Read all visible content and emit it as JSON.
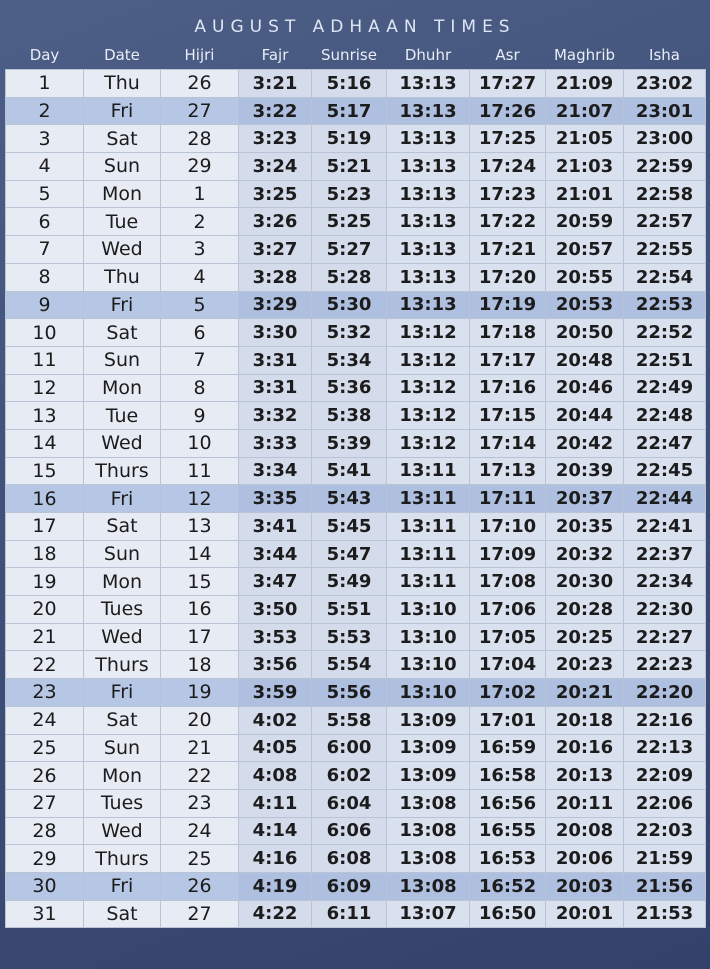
{
  "title": "AUGUST ADHAAN TIMES",
  "columns": [
    "Day",
    "Date",
    "Hijri",
    "Fajr",
    "Sunrise",
    "Dhuhr",
    "Asr",
    "Maghrib",
    "Isha"
  ],
  "rows": [
    [
      "1",
      "Thu",
      "26",
      "3:21",
      "5:16",
      "13:13",
      "17:27",
      "21:09",
      "23:02"
    ],
    [
      "2",
      "Fri",
      "27",
      "3:22",
      "5:17",
      "13:13",
      "17:26",
      "21:07",
      "23:01"
    ],
    [
      "3",
      "Sat",
      "28",
      "3:23",
      "5:19",
      "13:13",
      "17:25",
      "21:05",
      "23:00"
    ],
    [
      "4",
      "Sun",
      "29",
      "3:24",
      "5:21",
      "13:13",
      "17:24",
      "21:03",
      "22:59"
    ],
    [
      "5",
      "Mon",
      "1",
      "3:25",
      "5:23",
      "13:13",
      "17:23",
      "21:01",
      "22:58"
    ],
    [
      "6",
      "Tue",
      "2",
      "3:26",
      "5:25",
      "13:13",
      "17:22",
      "20:59",
      "22:57"
    ],
    [
      "7",
      "Wed",
      "3",
      "3:27",
      "5:27",
      "13:13",
      "17:21",
      "20:57",
      "22:55"
    ],
    [
      "8",
      "Thu",
      "4",
      "3:28",
      "5:28",
      "13:13",
      "17:20",
      "20:55",
      "22:54"
    ],
    [
      "9",
      "Fri",
      "5",
      "3:29",
      "5:30",
      "13:13",
      "17:19",
      "20:53",
      "22:53"
    ],
    [
      "10",
      "Sat",
      "6",
      "3:30",
      "5:32",
      "13:12",
      "17:18",
      "20:50",
      "22:52"
    ],
    [
      "11",
      "Sun",
      "7",
      "3:31",
      "5:34",
      "13:12",
      "17:17",
      "20:48",
      "22:51"
    ],
    [
      "12",
      "Mon",
      "8",
      "3:31",
      "5:36",
      "13:12",
      "17:16",
      "20:46",
      "22:49"
    ],
    [
      "13",
      "Tue",
      "9",
      "3:32",
      "5:38",
      "13:12",
      "17:15",
      "20:44",
      "22:48"
    ],
    [
      "14",
      "Wed",
      "10",
      "3:33",
      "5:39",
      "13:12",
      "17:14",
      "20:42",
      "22:47"
    ],
    [
      "15",
      "Thurs",
      "11",
      "3:34",
      "5:41",
      "13:11",
      "17:13",
      "20:39",
      "22:45"
    ],
    [
      "16",
      "Fri",
      "12",
      "3:35",
      "5:43",
      "13:11",
      "17:11",
      "20:37",
      "22:44"
    ],
    [
      "17",
      "Sat",
      "13",
      "3:41",
      "5:45",
      "13:11",
      "17:10",
      "20:35",
      "22:41"
    ],
    [
      "18",
      "Sun",
      "14",
      "3:44",
      "5:47",
      "13:11",
      "17:09",
      "20:32",
      "22:37"
    ],
    [
      "19",
      "Mon",
      "15",
      "3:47",
      "5:49",
      "13:11",
      "17:08",
      "20:30",
      "22:34"
    ],
    [
      "20",
      "Tues",
      "16",
      "3:50",
      "5:51",
      "13:10",
      "17:06",
      "20:28",
      "22:30"
    ],
    [
      "21",
      "Wed",
      "17",
      "3:53",
      "5:53",
      "13:10",
      "17:05",
      "20:25",
      "22:27"
    ],
    [
      "22",
      "Thurs",
      "18",
      "3:56",
      "5:54",
      "13:10",
      "17:04",
      "20:23",
      "22:23"
    ],
    [
      "23",
      "Fri",
      "19",
      "3:59",
      "5:56",
      "13:10",
      "17:02",
      "20:21",
      "22:20"
    ],
    [
      "24",
      "Sat",
      "20",
      "4:02",
      "5:58",
      "13:09",
      "17:01",
      "20:18",
      "22:16"
    ],
    [
      "25",
      "Sun",
      "21",
      "4:05",
      "6:00",
      "13:09",
      "16:59",
      "20:16",
      "22:13"
    ],
    [
      "26",
      "Mon",
      "22",
      "4:08",
      "6:02",
      "13:09",
      "16:58",
      "20:13",
      "22:09"
    ],
    [
      "27",
      "Tues",
      "23",
      "4:11",
      "6:04",
      "13:08",
      "16:56",
      "20:11",
      "22:06"
    ],
    [
      "28",
      "Wed",
      "24",
      "4:14",
      "6:06",
      "13:08",
      "16:55",
      "20:08",
      "22:03"
    ],
    [
      "29",
      "Thurs",
      "25",
      "4:16",
      "6:08",
      "13:08",
      "16:53",
      "20:06",
      "21:59"
    ],
    [
      "30",
      "Fri",
      "26",
      "4:19",
      "6:09",
      "13:08",
      "16:52",
      "20:03",
      "21:56"
    ],
    [
      "31",
      "Sat",
      "27",
      "4:22",
      "6:11",
      "13:07",
      "16:50",
      "20:01",
      "21:53"
    ]
  ],
  "highlight_day": "Fri",
  "colors": {
    "background": "#3f5079",
    "cell": "#e4e8f1",
    "highlight_row": "#b6c7e5",
    "header_text": "#e8edf6"
  }
}
